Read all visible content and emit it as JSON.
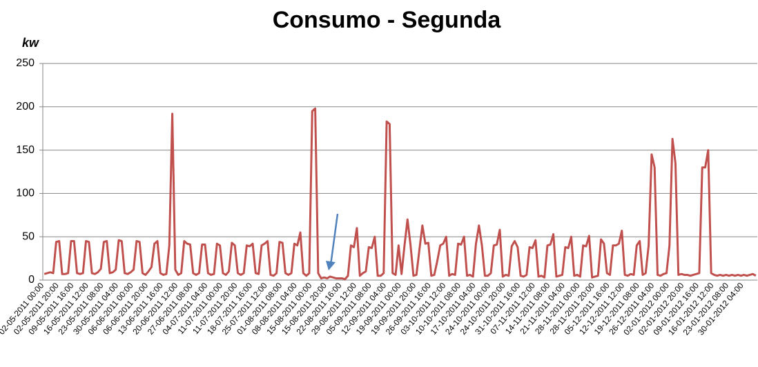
{
  "chart_data": {
    "type": "line",
    "title": "Consumo - Segunda",
    "y_label": "kw",
    "color": "#c0504d",
    "grid": true,
    "ylim": [
      0,
      250
    ],
    "yticks": [
      0,
      50,
      100,
      150,
      200,
      250
    ],
    "categories": [
      "02-05-2011 00:00",
      null,
      null,
      null,
      null,
      "02-05-2011 20:00",
      null,
      null,
      null,
      null,
      "09-05-2011 16:00",
      null,
      null,
      null,
      null,
      "16-05-2011 12:00",
      null,
      null,
      null,
      null,
      "23-05-2011 08:00",
      null,
      null,
      null,
      null,
      "30-05-2011 04:00",
      null,
      null,
      null,
      null,
      "06-06-2011 00:00",
      null,
      null,
      null,
      null,
      "06-06-2011 20:00",
      null,
      null,
      null,
      null,
      "13-06-2011 16:00",
      null,
      null,
      null,
      null,
      "20-06-2011 12:00",
      null,
      null,
      null,
      null,
      "27-06-2011 08:00",
      null,
      null,
      null,
      null,
      "04-07-2011 04:00",
      null,
      null,
      null,
      null,
      "11-07-2011 00:00",
      null,
      null,
      null,
      null,
      "11-07-2011 20:00",
      null,
      null,
      null,
      null,
      "18-07-2011 16:00",
      null,
      null,
      null,
      null,
      "25-07-2011 12:00",
      null,
      null,
      null,
      null,
      "01-08-2011 08:00",
      null,
      null,
      null,
      null,
      "08-08-2011 04:00",
      null,
      null,
      null,
      null,
      "15-08-2011 00:00",
      null,
      null,
      null,
      null,
      "15-08-2011 20:00",
      null,
      null,
      null,
      null,
      "22-08-2011 16:00",
      null,
      null,
      null,
      null,
      "29-08-2011 12:00",
      null,
      null,
      null,
      null,
      "05-09-2011 08:00",
      null,
      null,
      null,
      null,
      "12-09-2011 04:00",
      null,
      null,
      null,
      null,
      "19-09-2011 00:00",
      null,
      null,
      null,
      null,
      "19-09-2011 20:00",
      null,
      null,
      null,
      null,
      "26-09-2011 16:00",
      null,
      null,
      null,
      null,
      "03-10-2011 12:00",
      null,
      null,
      null,
      null,
      "10-10-2011 08:00",
      null,
      null,
      null,
      null,
      "17-10-2011 04:00",
      null,
      null,
      null,
      null,
      "24-10-2011 00:00",
      null,
      null,
      null,
      null,
      "24-10-2011 20:00",
      null,
      null,
      null,
      null,
      "31-10-2011 16:00",
      null,
      null,
      null,
      null,
      "07-11-2011 12:00",
      null,
      null,
      null,
      null,
      "14-11-2011 08:00",
      null,
      null,
      null,
      null,
      "21-11-2011 04:00",
      null,
      null,
      null,
      null,
      "28-11-2011 00:00",
      null,
      null,
      null,
      null,
      "28-11-2011 20:00",
      null,
      null,
      null,
      null,
      "05-12-2011 16:00",
      null,
      null,
      null,
      null,
      "12-12-2011 12:00",
      null,
      null,
      null,
      null,
      "19-12-2011 08:00",
      null,
      null,
      null,
      null,
      "26-12-2011 04:00",
      null,
      null,
      null,
      null,
      "02-01-2012 00:00",
      null,
      null,
      null,
      null,
      "02-01-2012 20:00",
      null,
      null,
      null,
      null,
      "09-01-2012 16:00",
      null,
      null,
      null,
      null,
      "16-01-2012 12:00",
      null,
      null,
      null,
      null,
      "23-01-2012 08:00",
      null,
      null,
      null,
      null,
      "30-01-2012 04:00",
      null,
      null,
      null,
      null
    ],
    "values": [
      7,
      8,
      9,
      8,
      44,
      45,
      7,
      7,
      8,
      45,
      45,
      8,
      7,
      8,
      45,
      44,
      8,
      7,
      9,
      13,
      44,
      45,
      8,
      9,
      12,
      46,
      45,
      8,
      7,
      9,
      12,
      45,
      44,
      8,
      6,
      10,
      15,
      42,
      45,
      8,
      6,
      7,
      40,
      192,
      12,
      6,
      8,
      45,
      42,
      41,
      8,
      6,
      8,
      41,
      41,
      8,
      6,
      7,
      42,
      40,
      8,
      6,
      10,
      43,
      40,
      8,
      6,
      8,
      40,
      39,
      42,
      8,
      7,
      40,
      42,
      45,
      6,
      5,
      8,
      44,
      43,
      8,
      6,
      8,
      42,
      40,
      55,
      8,
      5,
      8,
      195,
      198,
      8,
      2,
      3,
      2,
      4,
      3,
      2,
      2,
      2,
      1,
      5,
      40,
      38,
      60,
      5,
      8,
      10,
      38,
      37,
      50,
      5,
      5,
      8,
      183,
      180,
      8,
      6,
      40,
      7,
      40,
      70,
      41,
      5,
      6,
      35,
      63,
      42,
      43,
      5,
      6,
      22,
      40,
      42,
      50,
      5,
      7,
      6,
      42,
      41,
      50,
      5,
      6,
      4,
      42,
      63,
      40,
      5,
      5,
      8,
      40,
      41,
      58,
      4,
      6,
      5,
      39,
      45,
      38,
      5,
      4,
      6,
      38,
      37,
      46,
      4,
      5,
      3,
      40,
      41,
      53,
      4,
      5,
      6,
      38,
      37,
      50,
      5,
      6,
      4,
      40,
      39,
      51,
      3,
      4,
      5,
      47,
      42,
      8,
      6,
      40,
      40,
      42,
      57,
      6,
      5,
      7,
      6,
      40,
      45,
      6,
      8,
      40,
      145,
      130,
      6,
      5,
      7,
      8,
      40,
      163,
      135,
      6,
      7,
      6,
      6,
      5,
      6,
      7,
      8,
      130,
      130,
      150,
      8,
      6,
      5,
      6,
      5,
      6,
      5,
      6,
      5,
      6,
      5,
      6,
      5,
      6,
      7,
      5
    ]
  }
}
